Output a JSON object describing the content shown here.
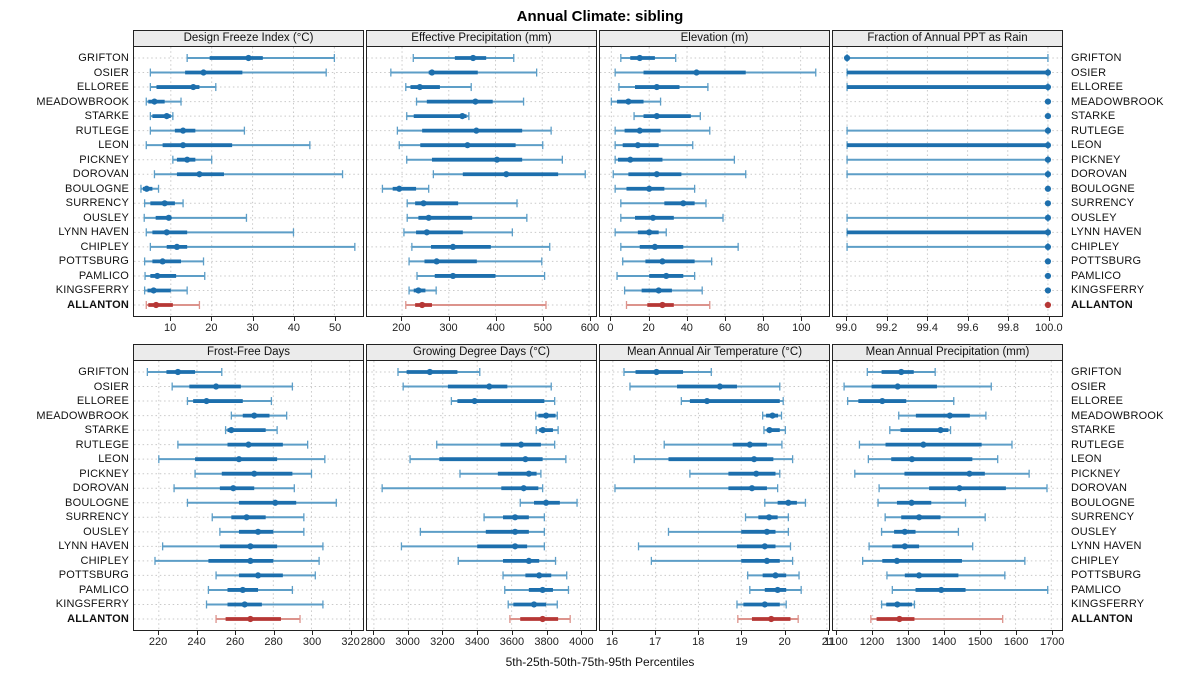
{
  "title": "Annual Climate: sibling",
  "footer": "5th-25th-50th-75th-95th Percentiles",
  "colors": {
    "blue_main": "#1d6fad",
    "blue_light": "#5d9ec7",
    "red_main": "#b63735",
    "red_light": "#dc938c",
    "grid": "#c9c9c9",
    "header_bg": "#ebebeb",
    "panel_border": "#222222"
  },
  "chart_data": {
    "type": "percentile-dotplot-trellis",
    "percentiles": [
      5,
      25,
      50,
      75,
      95
    ],
    "stations": [
      "GRIFTON",
      "OSIER",
      "ELLOREE",
      "MEADOWBROOK",
      "STARKE",
      "RUTLEGE",
      "LEON",
      "PICKNEY",
      "DOROVAN",
      "BOULOGNE",
      "SURRENCY",
      "OUSLEY",
      "LYNN HAVEN",
      "CHIPLEY",
      "POTTSBURG",
      "PAMLICO",
      "KINGSFERRY",
      "ALLANTON"
    ],
    "highlight_station": "ALLANTON",
    "panels": [
      {
        "title": "Design Freeze Index (°C)",
        "xlim": [
          1,
          57
        ],
        "ticks": [
          10,
          20,
          30,
          40,
          50
        ],
        "tick_labels": [
          "10",
          "20",
          "30",
          "40",
          "50"
        ],
        "values": [
          [
            14,
            19.5,
            29,
            32.5,
            50
          ],
          [
            5,
            13.5,
            18,
            27.5,
            48
          ],
          [
            5,
            6.5,
            15.5,
            17,
            21
          ],
          [
            4,
            4.5,
            6,
            8.5,
            12.5
          ],
          [
            5,
            5.5,
            9,
            10,
            10.5
          ],
          [
            5,
            11,
            13,
            16,
            28
          ],
          [
            4,
            8,
            13,
            25,
            44
          ],
          [
            10.5,
            11.5,
            14,
            16,
            20
          ],
          [
            6,
            11.5,
            17,
            23,
            52
          ],
          [
            2.7,
            3.2,
            4.1,
            5.5,
            7
          ],
          [
            3.6,
            5,
            8.5,
            11,
            13
          ],
          [
            3.5,
            6.3,
            9.5,
            10,
            28.5
          ],
          [
            4,
            5.5,
            9,
            14,
            40
          ],
          [
            5,
            9,
            11.5,
            14,
            55
          ],
          [
            3.6,
            5.5,
            8,
            12.5,
            18
          ],
          [
            3.7,
            5,
            6.7,
            11.3,
            18.3
          ],
          [
            3.6,
            4.3,
            5.8,
            10,
            14
          ],
          [
            4,
            4.5,
            6.4,
            10.5,
            17
          ]
        ]
      },
      {
        "title": "Effective Precipitation (mm)",
        "xlim": [
          125,
          615
        ],
        "ticks": [
          200,
          300,
          400,
          500,
          600
        ],
        "tick_labels": [
          "200",
          "300",
          "400",
          "500",
          "600"
        ],
        "values": [
          [
            224,
            313,
            352,
            380,
            439
          ],
          [
            176,
            257,
            264,
            362,
            488
          ],
          [
            208,
            218,
            238,
            281,
            348
          ],
          [
            231,
            253,
            357,
            394,
            460
          ],
          [
            210,
            225,
            329,
            338,
            343
          ],
          [
            190,
            243,
            359,
            457,
            519
          ],
          [
            194,
            239,
            340,
            443,
            501
          ],
          [
            210,
            264,
            403,
            457,
            543
          ],
          [
            267,
            330,
            423,
            534,
            592
          ],
          [
            158,
            180,
            194,
            230,
            257
          ],
          [
            211,
            228,
            246,
            320,
            446
          ],
          [
            211,
            235,
            257,
            350,
            467
          ],
          [
            204,
            230,
            253,
            330,
            436
          ],
          [
            221,
            262,
            309,
            390,
            516
          ],
          [
            215,
            248,
            274,
            360,
            499
          ],
          [
            232,
            270,
            309,
            400,
            505
          ],
          [
            215,
            225,
            235,
            250,
            273
          ],
          [
            208,
            228,
            243,
            264,
            508
          ]
        ]
      },
      {
        "title": "Elevation (m)",
        "xlim": [
          -6,
          115
        ],
        "ticks": [
          0,
          20,
          40,
          60,
          80,
          100
        ],
        "tick_labels": [
          "0",
          "20",
          "40",
          "60",
          "80",
          "100"
        ],
        "values": [
          [
            5,
            10,
            15,
            23,
            34
          ],
          [
            2,
            17,
            45,
            71,
            108
          ],
          [
            4,
            12.5,
            24,
            36,
            51
          ],
          [
            0,
            3,
            9,
            17,
            26
          ],
          [
            12,
            17,
            24,
            42,
            47
          ],
          [
            2,
            7,
            15,
            26,
            52
          ],
          [
            2,
            6,
            14,
            25,
            43
          ],
          [
            2,
            3.5,
            10,
            27,
            65
          ],
          [
            1,
            9,
            24,
            37,
            71
          ],
          [
            2,
            8,
            20,
            28,
            44
          ],
          [
            5,
            28,
            38,
            44,
            50
          ],
          [
            5,
            12.5,
            22,
            33,
            59
          ],
          [
            2,
            14,
            20,
            25,
            29
          ],
          [
            5,
            15,
            23,
            38,
            67
          ],
          [
            6,
            18,
            27,
            44,
            53
          ],
          [
            3,
            20,
            29,
            38,
            44
          ],
          [
            7,
            16,
            25,
            32,
            48
          ],
          [
            8,
            19,
            27,
            33,
            52
          ]
        ]
      },
      {
        "title": "Fraction of Annual PPT as Rain",
        "xlim": [
          98.93,
          100.07
        ],
        "ticks": [
          99.0,
          99.2,
          99.4,
          99.6,
          99.8,
          100.0
        ],
        "tick_labels": [
          "99.0",
          "99.2",
          "99.4",
          "99.6",
          "99.8",
          "100.0"
        ],
        "values": [
          [
            99,
            99,
            99,
            99,
            100
          ],
          [
            99,
            99,
            100,
            100,
            100
          ],
          [
            99,
            99,
            100,
            100,
            100
          ],
          [
            100,
            100,
            100,
            100,
            100
          ],
          [
            100,
            100,
            100,
            100,
            100
          ],
          [
            99,
            100,
            100,
            100,
            100
          ],
          [
            99,
            99,
            100,
            100,
            100
          ],
          [
            99,
            100,
            100,
            100,
            100
          ],
          [
            99,
            100,
            100,
            100,
            100
          ],
          [
            100,
            100,
            100,
            100,
            100
          ],
          [
            100,
            100,
            100,
            100,
            100
          ],
          [
            99,
            100,
            100,
            100,
            100
          ],
          [
            99,
            99,
            100,
            100,
            100
          ],
          [
            99,
            100,
            100,
            100,
            100
          ],
          [
            100,
            100,
            100,
            100,
            100
          ],
          [
            100,
            100,
            100,
            100,
            100
          ],
          [
            100,
            100,
            100,
            100,
            100
          ],
          [
            100,
            100,
            100,
            100,
            100
          ]
        ]
      },
      {
        "title": "Frost-Free Days",
        "xlim": [
          207,
          327
        ],
        "ticks": [
          220,
          240,
          260,
          280,
          300,
          320
        ],
        "tick_labels": [
          "220",
          "240",
          "260",
          "280",
          "300",
          "320"
        ],
        "values": [
          [
            214,
            224,
            230,
            239,
            253
          ],
          [
            227,
            236,
            250,
            263,
            290
          ],
          [
            235,
            238,
            245,
            264,
            279
          ],
          [
            258,
            264,
            270,
            278,
            287
          ],
          [
            255,
            256,
            258,
            276,
            282
          ],
          [
            230,
            256,
            267,
            285,
            298
          ],
          [
            220,
            239,
            262,
            282,
            307
          ],
          [
            239,
            253,
            270,
            290,
            300
          ],
          [
            228,
            252,
            259,
            270,
            291
          ],
          [
            235,
            262,
            281,
            292,
            313
          ],
          [
            248,
            258,
            266,
            276,
            296
          ],
          [
            252,
            262,
            272,
            280,
            296
          ],
          [
            222,
            252,
            268,
            282,
            306
          ],
          [
            218,
            246,
            268,
            280,
            304
          ],
          [
            250,
            262,
            272,
            285,
            302
          ],
          [
            246,
            256,
            264,
            272,
            290
          ],
          [
            245,
            256,
            265,
            274,
            306
          ],
          [
            250,
            255,
            268,
            284,
            294
          ]
        ]
      },
      {
        "title": "Growing Degree Days (°C)",
        "xlim": [
          2760,
          4090
        ],
        "ticks": [
          2800,
          3000,
          3200,
          3400,
          3600,
          3800,
          4000
        ],
        "tick_labels": [
          "2800",
          "3000",
          "3200",
          "3400",
          "3600",
          "3800",
          "4000"
        ],
        "values": [
          [
            2940,
            2990,
            3125,
            3285,
            3415
          ],
          [
            2970,
            3230,
            3470,
            3575,
            3830
          ],
          [
            3250,
            3285,
            3385,
            3790,
            3850
          ],
          [
            3740,
            3755,
            3800,
            3855,
            3865
          ],
          [
            3743,
            3760,
            3781,
            3840,
            3870
          ],
          [
            3165,
            3535,
            3655,
            3770,
            3850
          ],
          [
            3010,
            3180,
            3680,
            3780,
            3915
          ],
          [
            3300,
            3520,
            3700,
            3745,
            3770
          ],
          [
            2848,
            3540,
            3670,
            3755,
            3780
          ],
          [
            3650,
            3730,
            3800,
            3880,
            3980
          ],
          [
            3440,
            3550,
            3620,
            3700,
            3790
          ],
          [
            3070,
            3450,
            3620,
            3700,
            3790
          ],
          [
            2960,
            3400,
            3620,
            3690,
            3790
          ],
          [
            3290,
            3550,
            3700,
            3760,
            3855
          ],
          [
            3550,
            3680,
            3760,
            3830,
            3920
          ],
          [
            3560,
            3700,
            3780,
            3840,
            3930
          ],
          [
            3580,
            3610,
            3730,
            3800,
            3865
          ],
          [
            3590,
            3650,
            3780,
            3870,
            3940
          ]
        ]
      },
      {
        "title": "Mean Annual Air Temperature (°C)",
        "xlim": [
          15.7,
          21.05
        ],
        "ticks": [
          16,
          17,
          18,
          19,
          20,
          21
        ],
        "tick_labels": [
          "16",
          "17",
          "18",
          "19",
          "20",
          "21"
        ],
        "values": [
          [
            16.26,
            16.53,
            17.02,
            17.64,
            18.3
          ],
          [
            16.4,
            17.5,
            18.5,
            18.9,
            19.9
          ],
          [
            17.6,
            17.8,
            18.2,
            19.9,
            19.98
          ],
          [
            19.5,
            19.58,
            19.73,
            19.86,
            19.94
          ],
          [
            19.53,
            19.6,
            19.66,
            19.9,
            20.03
          ],
          [
            17.2,
            18.8,
            19.2,
            19.6,
            19.95
          ],
          [
            16.5,
            17.3,
            19.3,
            19.75,
            20.2
          ],
          [
            17.8,
            18.7,
            19.35,
            19.8,
            19.9
          ],
          [
            16.05,
            18.7,
            19.25,
            19.6,
            19.85
          ],
          [
            19.55,
            19.85,
            20.1,
            20.3,
            20.5
          ],
          [
            19.1,
            19.4,
            19.65,
            19.85,
            20.1
          ],
          [
            17.3,
            19.0,
            19.6,
            19.8,
            20.1
          ],
          [
            16.6,
            18.9,
            19.55,
            19.8,
            20.15
          ],
          [
            16.9,
            19.0,
            19.6,
            19.9,
            20.2
          ],
          [
            19.15,
            19.5,
            19.8,
            20.05,
            20.35
          ],
          [
            19.2,
            19.55,
            19.85,
            20.05,
            20.4
          ],
          [
            18.9,
            19.05,
            19.55,
            19.9,
            20.05
          ],
          [
            18.92,
            19.25,
            19.7,
            20.15,
            20.33
          ]
        ]
      },
      {
        "title": "Mean Annual Precipitation (mm)",
        "xlim": [
          1089,
          1730
        ],
        "ticks": [
          1100,
          1200,
          1300,
          1400,
          1500,
          1600,
          1700
        ],
        "tick_labels": [
          "1100",
          "1200",
          "1300",
          "1400",
          "1500",
          "1600",
          "1700"
        ],
        "values": [
          [
            1185,
            1225,
            1280,
            1315,
            1375
          ],
          [
            1120,
            1197,
            1270,
            1380,
            1532
          ],
          [
            1130,
            1160,
            1227,
            1294,
            1427
          ],
          [
            1273,
            1321,
            1416,
            1472,
            1517
          ],
          [
            1248,
            1278,
            1390,
            1412,
            1418
          ],
          [
            1163,
            1236,
            1342,
            1505,
            1590
          ],
          [
            1188,
            1252,
            1310,
            1479,
            1550
          ],
          [
            1150,
            1289,
            1471,
            1514,
            1638
          ],
          [
            1218,
            1358,
            1443,
            1573,
            1688
          ],
          [
            1215,
            1268,
            1309,
            1364,
            1460
          ],
          [
            1235,
            1280,
            1330,
            1390,
            1515
          ],
          [
            1225,
            1260,
            1290,
            1320,
            1440
          ],
          [
            1190,
            1255,
            1290,
            1330,
            1480
          ],
          [
            1172,
            1227,
            1268,
            1450,
            1626
          ],
          [
            1240,
            1290,
            1330,
            1440,
            1570
          ],
          [
            1255,
            1320,
            1392,
            1460,
            1690
          ],
          [
            1225,
            1238,
            1269,
            1310,
            1317
          ],
          [
            1195,
            1211,
            1275,
            1317,
            1564
          ]
        ]
      }
    ]
  }
}
